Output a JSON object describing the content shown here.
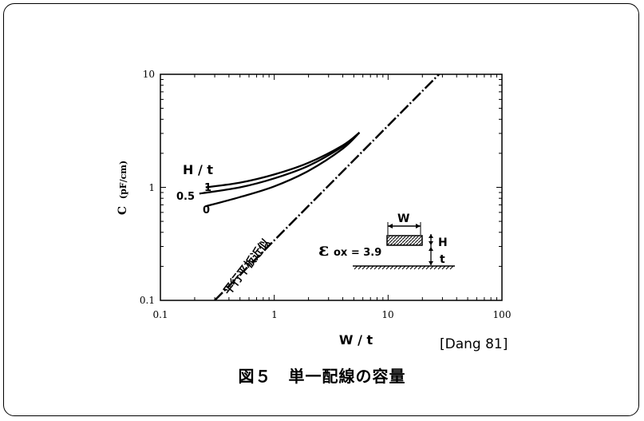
{
  "chart_data": {
    "type": "line",
    "xscale": "log",
    "yscale": "log",
    "xlim": [
      0.1,
      100
    ],
    "ylim": [
      0.1,
      10
    ],
    "xticks": [
      "0.1",
      "1",
      "10",
      "100"
    ],
    "yticks": [
      "0.1",
      "1",
      "10"
    ],
    "xlabel": "W / t",
    "ylabel": "C",
    "ylabel_unit": "(pF/cm)",
    "legend_title": "H / t",
    "series": [
      {
        "name": "1",
        "x": [
          0.25,
          0.5,
          1,
          2,
          4,
          5.6
        ],
        "y": [
          1.0,
          1.1,
          1.3,
          1.65,
          2.35,
          3.05
        ]
      },
      {
        "name": "0.5",
        "x": [
          0.22,
          0.5,
          1,
          2,
          4,
          5.6
        ],
        "y": [
          0.88,
          1.0,
          1.2,
          1.55,
          2.3,
          3.05
        ]
      },
      {
        "name": "0",
        "x": [
          0.25,
          0.5,
          1,
          2,
          4,
          5.6
        ],
        "y": [
          0.68,
          0.82,
          1.02,
          1.4,
          2.2,
          3.05
        ]
      }
    ],
    "reference_line": {
      "label": "平行平板近似",
      "style": "dash-dot",
      "x": [
        0.3,
        28
      ],
      "y": [
        0.1,
        10
      ]
    },
    "inset": {
      "width_label": "W",
      "height_label": "H",
      "thickness_label": "t",
      "epsilon_symbol": "ε",
      "epsilon_sub": "ox = 3.9"
    }
  },
  "reference": "[Dang 81]",
  "caption": "図５　単一配線の容量"
}
